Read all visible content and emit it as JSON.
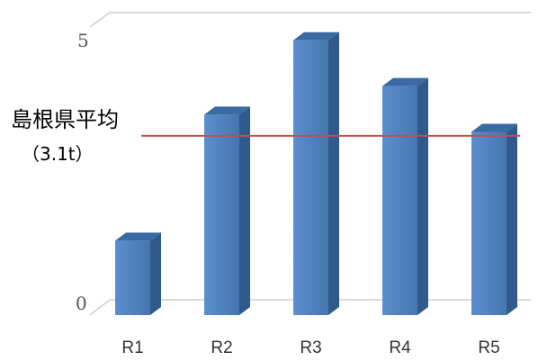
{
  "chart_data": {
    "type": "bar",
    "categories": [
      "R1",
      "R2",
      "R3",
      "R4",
      "R5"
    ],
    "values": [
      1.3,
      3.5,
      4.8,
      4.0,
      3.2
    ],
    "yticks": [
      "0",
      "5"
    ],
    "ylim": [
      0,
      5
    ],
    "reference_line": {
      "value": 3.1,
      "label_line1": "島根県平均",
      "label_line2": "（3.1t）",
      "color": "#c0504d"
    },
    "bar_color": "#4f81bd",
    "grid": false,
    "style": "3d"
  }
}
